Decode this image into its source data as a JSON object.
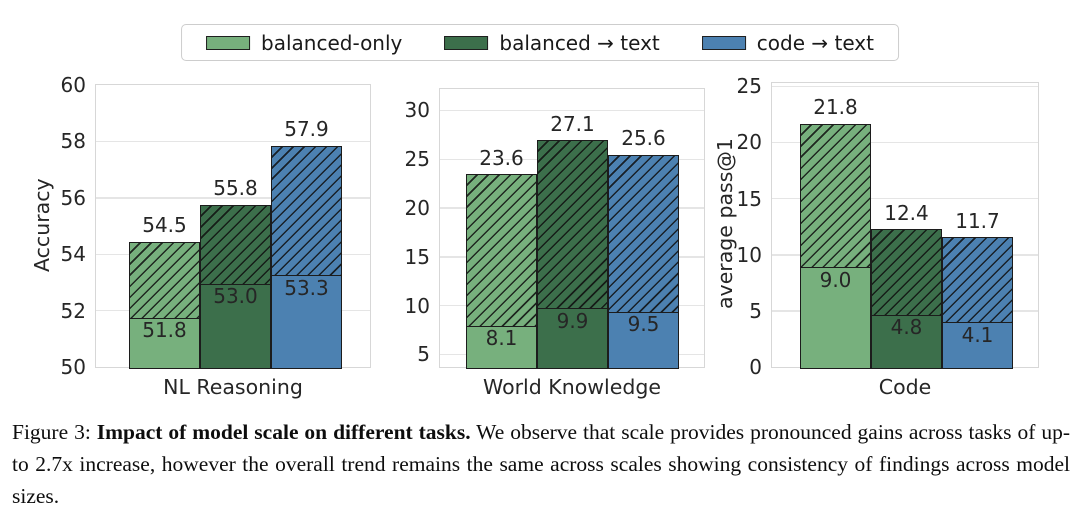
{
  "legend": {
    "items": [
      {
        "label": "balanced-only",
        "color": "#77b07d"
      },
      {
        "label": "balanced → text",
        "color": "#3c6f4b"
      },
      {
        "label": "code → text",
        "color": "#4c81b1"
      }
    ],
    "swatch_border_color": "#1f1f1f"
  },
  "style_colors": {
    "bar_edge": "#1c1c1c",
    "gridline": "#e5e5e5",
    "axis_spine": "#d7d7d7",
    "tick_text": "#262626"
  },
  "chart_data": [
    {
      "type": "bar",
      "group_label": "NL Reasoning",
      "ylabel": "Accuracy",
      "ylim": [
        50,
        60
      ],
      "yticks": [
        50,
        52,
        54,
        56,
        58,
        60
      ],
      "grid": true,
      "bars": [
        {
          "series": "balanced-only",
          "color": "#77b07d",
          "total": 54.5,
          "base": 51.8
        },
        {
          "series": "balanced → text",
          "color": "#3c6f4b",
          "total": 55.8,
          "base": 53.0
        },
        {
          "series": "code → text",
          "color": "#4c81b1",
          "total": 57.9,
          "base": 53.3
        }
      ]
    },
    {
      "type": "bar",
      "group_label": "World Knowledge",
      "ylabel": "",
      "ylim": [
        3.7,
        32.2
      ],
      "yticks": [
        5,
        10,
        15,
        20,
        25,
        30
      ],
      "grid": true,
      "bars": [
        {
          "series": "balanced-only",
          "color": "#77b07d",
          "total": 23.6,
          "base": 8.1
        },
        {
          "series": "balanced → text",
          "color": "#3c6f4b",
          "total": 27.1,
          "base": 9.9
        },
        {
          "series": "code → text",
          "color": "#4c81b1",
          "total": 25.6,
          "base": 9.5
        }
      ]
    },
    {
      "type": "bar",
      "group_label": "Code",
      "ylabel": "average pass@1",
      "ylim": [
        0,
        25.3
      ],
      "yticks": [
        0,
        5,
        10,
        15,
        20,
        25
      ],
      "grid": true,
      "bars": [
        {
          "series": "balanced-only",
          "color": "#77b07d",
          "total": 21.8,
          "base": 9.0
        },
        {
          "series": "balanced → text",
          "color": "#3c6f4b",
          "total": 12.4,
          "base": 4.8
        },
        {
          "series": "code → text",
          "color": "#4c81b1",
          "total": 11.7,
          "base": 4.1
        }
      ]
    }
  ],
  "caption": {
    "prefix": "Figure 3: ",
    "bold": "Impact of model scale on different tasks.",
    "rest": " We observe that scale provides pronounced gains across tasks of up-to 2.7x increase, however the overall trend remains the same across scales showing consistency of findings across model sizes."
  }
}
